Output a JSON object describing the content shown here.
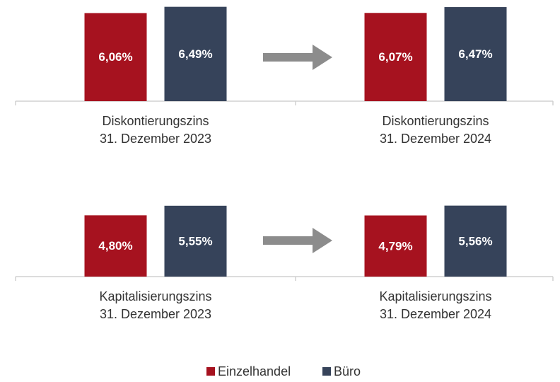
{
  "chart_data": [
    {
      "type": "bar",
      "categories": [
        [
          "Diskontierungszins",
          "31. Dezember 2023"
        ],
        [
          "Diskontierungszins",
          "31. Dezember 2024"
        ]
      ],
      "series": [
        {
          "name": "Einzelhandel",
          "color": "#a6121f",
          "values": [
            6.06,
            6.07
          ],
          "value_labels": [
            "6,06%",
            "6,07%"
          ]
        },
        {
          "name": "Büro",
          "color": "#36435a",
          "values": [
            6.49,
            6.47
          ],
          "value_labels": [
            "6,49%",
            "6,47%"
          ]
        }
      ]
    },
    {
      "type": "bar",
      "categories": [
        [
          "Kapitalisierungszins",
          "31. Dezember 2023"
        ],
        [
          "Kapitalisierungszins",
          "31. Dezember 2024"
        ]
      ],
      "series": [
        {
          "name": "Einzelhandel",
          "color": "#a6121f",
          "values": [
            4.8,
            4.79
          ],
          "value_labels": [
            "4,80%",
            "4,79%"
          ]
        },
        {
          "name": "Büro",
          "color": "#36435a",
          "values": [
            5.55,
            5.56
          ],
          "value_labels": [
            "5,55%",
            "5,56%"
          ]
        }
      ]
    }
  ]
}
